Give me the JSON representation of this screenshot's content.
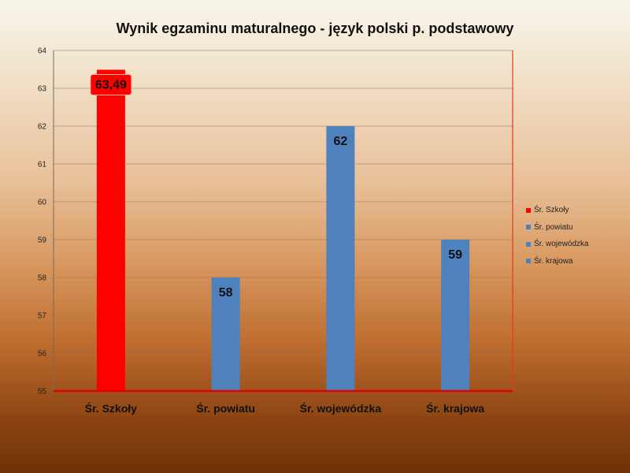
{
  "chart_data": {
    "type": "bar",
    "title": "Wynik egzaminu maturalnego - język polski p. podstawowy",
    "categories": [
      "Śr. Szkoły",
      "Śr. powiatu",
      "Śr. wojewódzka",
      "Śr. krajowa"
    ],
    "values": [
      63.49,
      58,
      62,
      59
    ],
    "data_labels": [
      "63,49",
      "58",
      "62",
      "59"
    ],
    "colors": [
      "#ff0000",
      "#4f81bd",
      "#4f81bd",
      "#4f81bd"
    ],
    "ylim": [
      55,
      64
    ],
    "yticks": [
      "55",
      "56",
      "57",
      "58",
      "59",
      "60",
      "61",
      "62",
      "63",
      "64"
    ],
    "grid": true,
    "legend_position": "right",
    "legend": [
      {
        "label": "Śr. Szkoły",
        "color": "#ff0000"
      },
      {
        "label": "Śr. powiatu",
        "color": "#4f81bd"
      },
      {
        "label": "Śr. wojewódzka",
        "color": "#4f81bd"
      },
      {
        "label": "Śr. krajowa",
        "color": "#4f81bd"
      }
    ]
  }
}
